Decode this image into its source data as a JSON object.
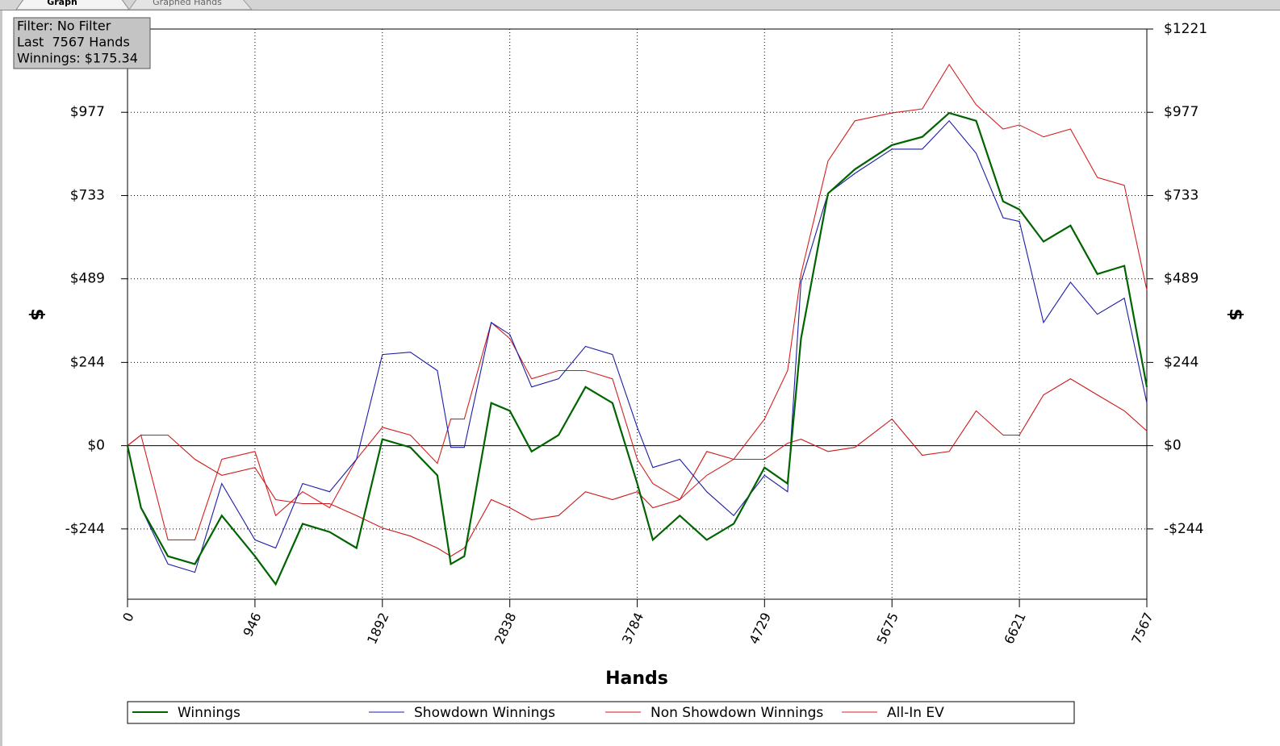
{
  "tabs": [
    "Graph",
    "Graphed Hands"
  ],
  "info_box": [
    "Filter: No Filter",
    "Last  7567 Hands",
    "Winnings: $175.34"
  ],
  "chart_data": {
    "type": "line",
    "xlabel": "Hands",
    "ylabel": "$",
    "x": [
      0,
      100,
      300,
      500,
      700,
      946,
      1100,
      1300,
      1500,
      1700,
      1892,
      2100,
      2300,
      2400,
      2500,
      2700,
      2838,
      3000,
      3200,
      3400,
      3600,
      3784,
      3900,
      4100,
      4300,
      4500,
      4729,
      4900,
      5000,
      5200,
      5400,
      5675,
      5900,
      6100,
      6300,
      6500,
      6621,
      6800,
      7000,
      7200,
      7400,
      7567
    ],
    "series": [
      {
        "name": "Winnings",
        "color": "#006400",
        "values": [
          0,
          -182,
          -324,
          -347,
          -205,
          -324,
          -406,
          -229,
          -253,
          -300,
          19,
          -5,
          -87,
          -347,
          -324,
          125,
          102,
          -17,
          31,
          172,
          125,
          -111,
          -276,
          -205,
          -276,
          -229,
          -64,
          -111,
          314,
          739,
          810,
          881,
          905,
          975,
          952,
          716,
          692,
          598,
          645,
          503,
          527,
          172
        ]
      },
      {
        "name": "Showdown Winnings",
        "color": "#1c1ca8",
        "values": [
          0,
          -182,
          -347,
          -371,
          -111,
          -276,
          -300,
          -111,
          -135,
          -40,
          267,
          274,
          220,
          -5,
          -5,
          361,
          326,
          172,
          196,
          291,
          267,
          54,
          -64,
          -40,
          -135,
          -205,
          -87,
          -135,
          479,
          739,
          798,
          869,
          869,
          952,
          857,
          668,
          657,
          361,
          479,
          385,
          432,
          125
        ]
      },
      {
        "name": "Non Showdown Winnings",
        "color": "#cc1818",
        "values": [
          0,
          31,
          31,
          -40,
          -87,
          -64,
          -158,
          -170,
          -170,
          -205,
          -241,
          -265,
          -300,
          -324,
          -300,
          -158,
          -182,
          -217,
          -205,
          -135,
          -158,
          -135,
          -182,
          -158,
          -17,
          -40,
          -40,
          7,
          19,
          -17,
          -5,
          78,
          -28,
          -17,
          102,
          31,
          31,
          149,
          196,
          149,
          102,
          43
        ]
      },
      {
        "name": "All-In EV",
        "color": "#d42020",
        "values": [
          0,
          31,
          -276,
          -276,
          -40,
          -17,
          -205,
          -135,
          -182,
          -40,
          54,
          31,
          -52,
          78,
          78,
          361,
          314,
          196,
          220,
          220,
          196,
          -40,
          -111,
          -158,
          -87,
          -40,
          78,
          220,
          503,
          834,
          952,
          975,
          987,
          1117,
          999,
          928,
          940,
          905,
          928,
          786,
          763,
          456
        ]
      }
    ],
    "xlim": [
      0,
      7567
    ],
    "xticks": [
      0,
      946,
      1892,
      2838,
      3784,
      4729,
      5675,
      6621,
      7567
    ],
    "ylim": [
      -450,
      1221
    ],
    "yticks": [
      {
        "value": -244,
        "label": "-$244"
      },
      {
        "value": 0,
        "label": "$0"
      },
      {
        "value": 244,
        "label": "$244"
      },
      {
        "value": 489,
        "label": "$489"
      },
      {
        "value": 733,
        "label": "$733"
      },
      {
        "value": 977,
        "label": "$977"
      },
      {
        "value": 1221,
        "label": "$1221"
      }
    ],
    "grid": true
  }
}
